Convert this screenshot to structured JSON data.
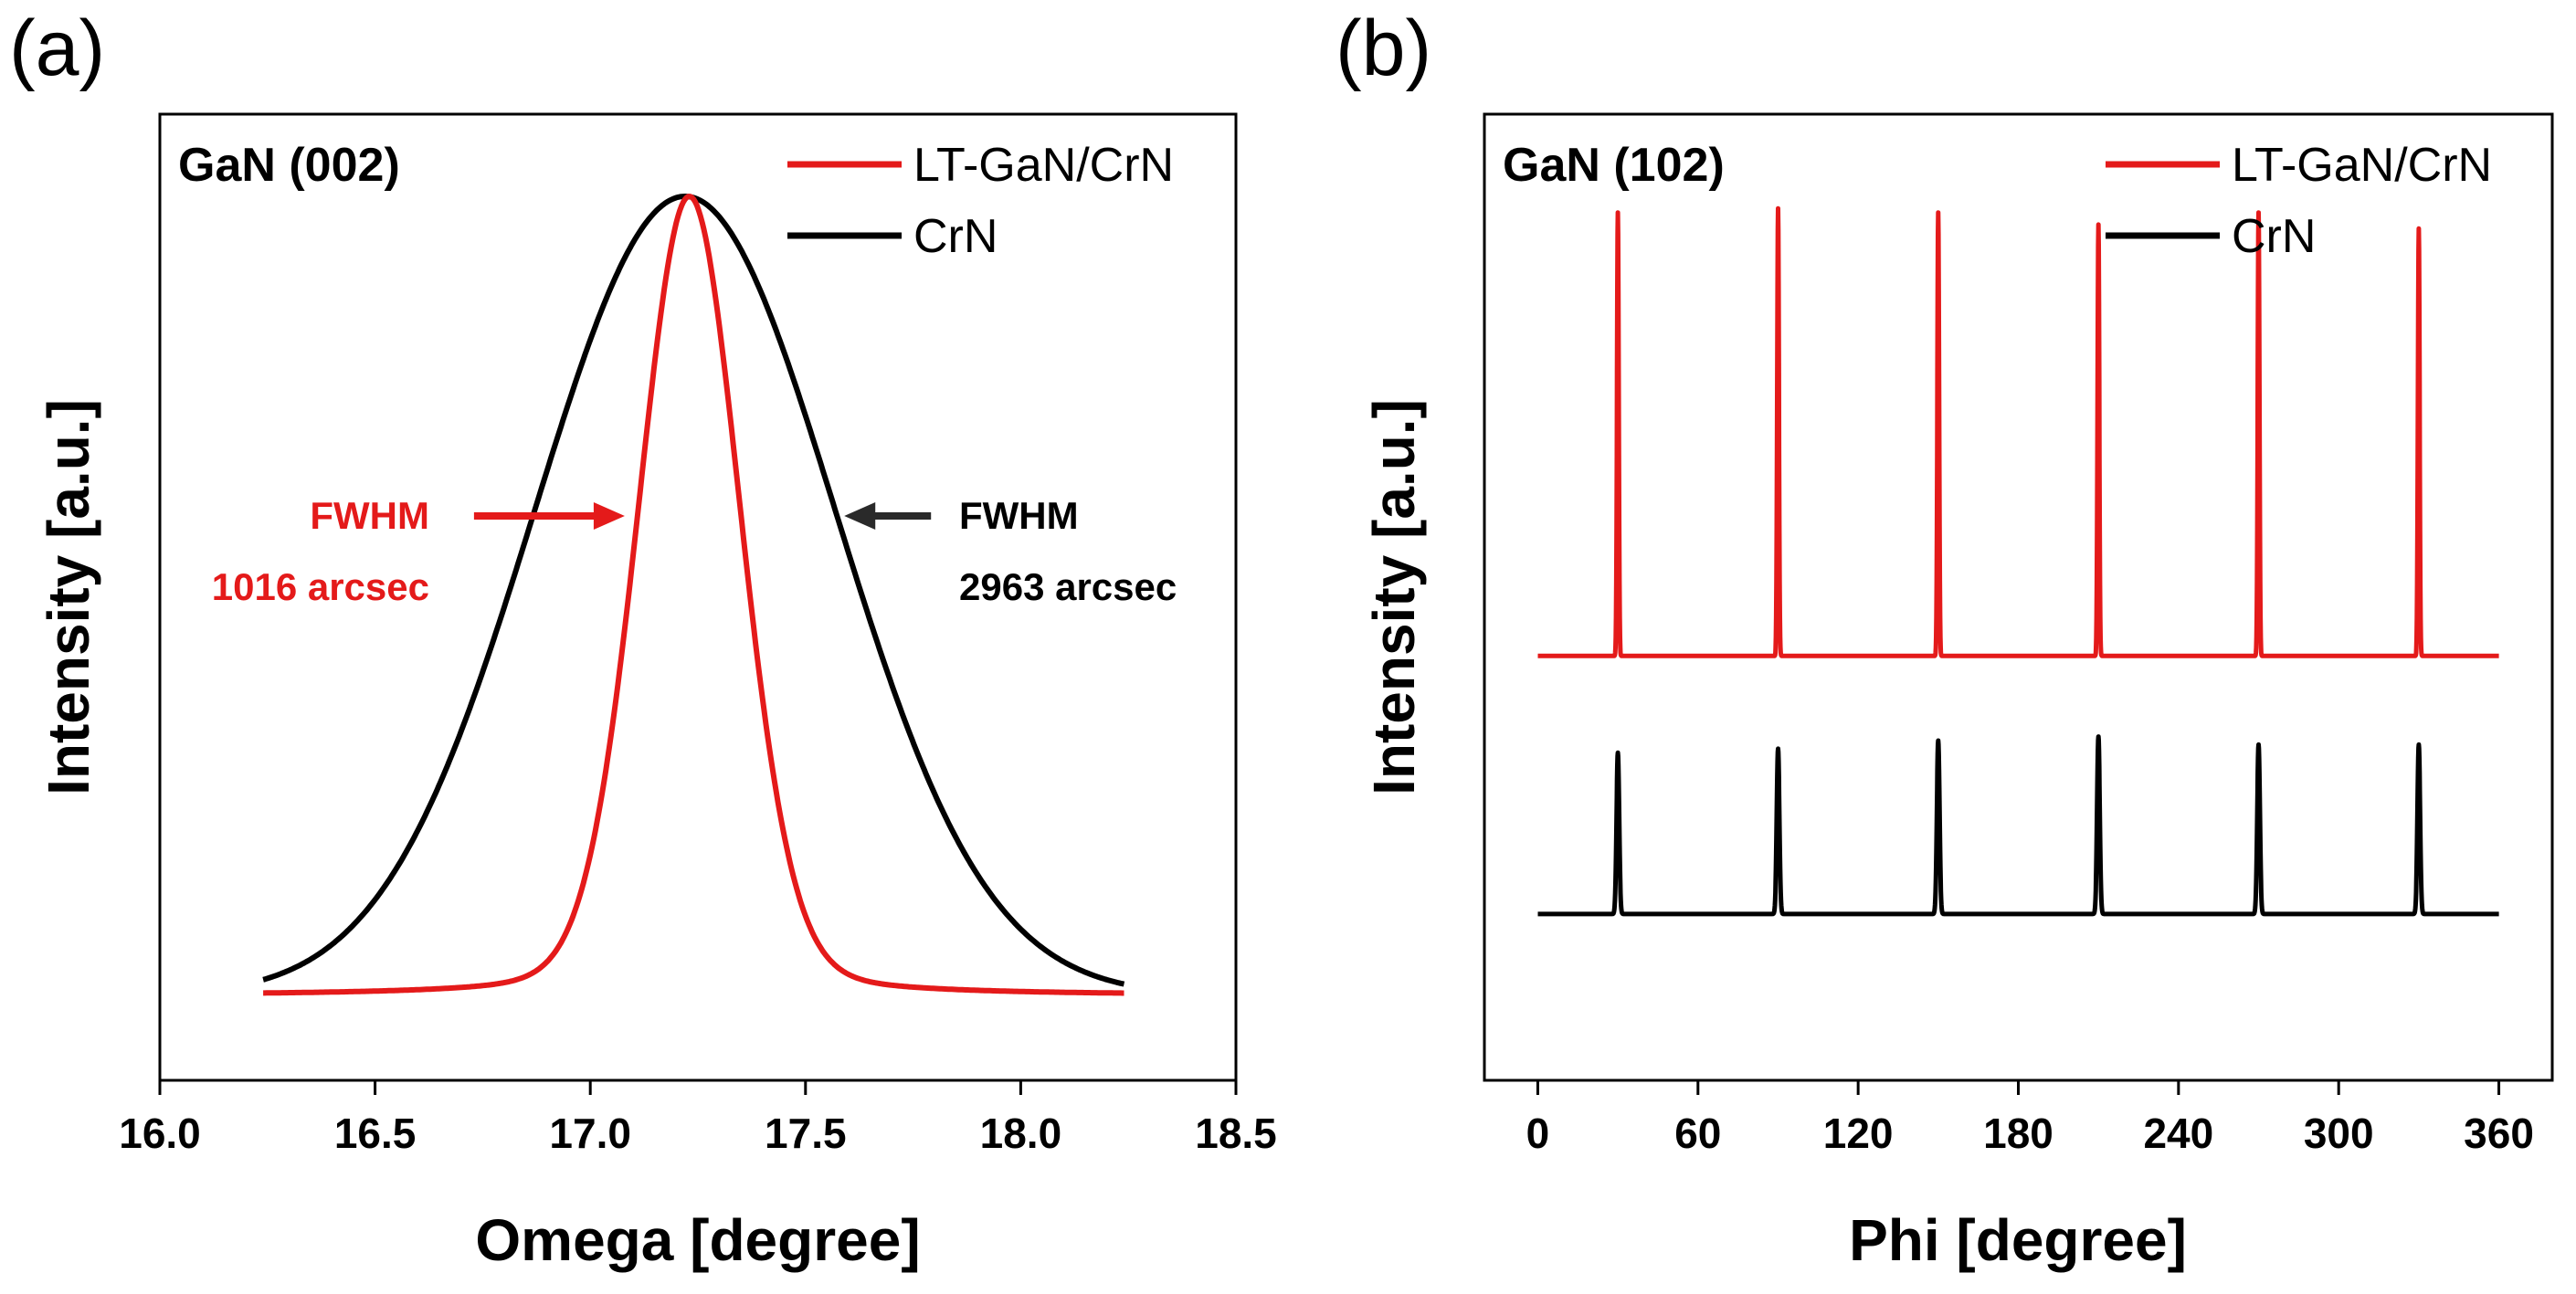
{
  "colors": {
    "red": "#e41a1a",
    "black": "#000000",
    "arrow_black": "#2a2a2a"
  },
  "chart_data": [
    {
      "panel": "(a)",
      "type": "line",
      "title": "GaN (002)",
      "xlabel": "Omega [degree]",
      "ylabel": "Intensity [a.u.]",
      "xlim": [
        16.0,
        18.5
      ],
      "xticks": [
        "16.0",
        "16.5",
        "17.0",
        "17.5",
        "18.0",
        "18.5"
      ],
      "ylim": [
        0,
        1.12
      ],
      "legend_position": "top-right",
      "series": [
        {
          "name": "LT-GaN/CrN",
          "color": "#e41a1a",
          "x_range": [
            16.24,
            18.24
          ],
          "peak_center": 17.23,
          "peak_height": 1.0,
          "baseline": 0.0,
          "fwhm_arcsec": 1016
        },
        {
          "name": "CrN",
          "color": "#000000",
          "x_range": [
            16.24,
            18.24
          ],
          "peak_center": 17.22,
          "peak_height": 1.0,
          "baseline": 0.0,
          "fwhm_arcsec": 2963
        }
      ],
      "annotations": [
        {
          "line1": "FWHM",
          "line2": "1016 arcsec",
          "color": "#e41a1a",
          "arrow": "right",
          "points_to_x": 17.08,
          "level_y": 0.6
        },
        {
          "line1": "FWHM",
          "line2": "2963 arcsec",
          "color": "#000000",
          "arrow": "left",
          "points_to_x": 17.59,
          "level_y": 0.6
        }
      ]
    },
    {
      "panel": "(b)",
      "type": "line",
      "title": "GaN (102)",
      "xlabel": "Phi [degree]",
      "ylabel": "Intensity [a.u.]",
      "xlim": [
        -20,
        380
      ],
      "xticks": [
        "0",
        "60",
        "120",
        "180",
        "240",
        "300",
        "360"
      ],
      "ylim": [
        0,
        1.12
      ],
      "legend_position": "top-right",
      "series": [
        {
          "name": "LT-GaN/CrN",
          "color": "#e41a1a",
          "x_range": [
            0,
            360
          ],
          "baseline": 0.43,
          "peaks": [
            {
              "x": 30,
              "height": 0.98
            },
            {
              "x": 90,
              "height": 0.985
            },
            {
              "x": 150,
              "height": 0.98
            },
            {
              "x": 210,
              "height": 0.965
            },
            {
              "x": 270,
              "height": 0.98
            },
            {
              "x": 330,
              "height": 0.96
            }
          ]
        },
        {
          "name": "CrN",
          "color": "#000000",
          "x_range": [
            0,
            360
          ],
          "baseline": 0.11,
          "peaks": [
            {
              "x": 30,
              "height": 0.31
            },
            {
              "x": 90,
              "height": 0.315
            },
            {
              "x": 150,
              "height": 0.325
            },
            {
              "x": 210,
              "height": 0.33
            },
            {
              "x": 270,
              "height": 0.32
            },
            {
              "x": 330,
              "height": 0.32
            }
          ]
        }
      ]
    }
  ]
}
